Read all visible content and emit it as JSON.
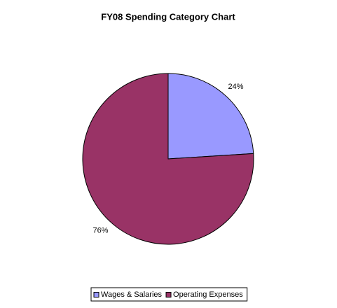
{
  "chart_data": {
    "type": "pie",
    "title": "FY08 Spending Category Chart",
    "categories": [
      "Wages & Salaries",
      "Operating Expenses"
    ],
    "values": [
      24,
      76
    ],
    "value_labels": [
      "24%",
      "76%"
    ],
    "colors": [
      "#9999ff",
      "#993366"
    ],
    "legend": "bottom"
  }
}
